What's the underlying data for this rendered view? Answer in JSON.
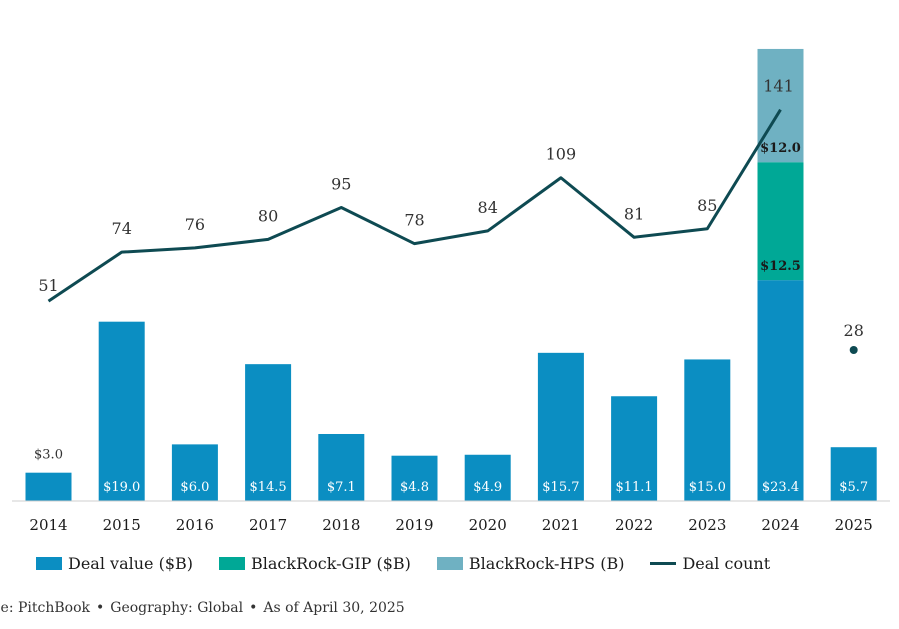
{
  "chart_data": {
    "type": "bar",
    "categories": [
      "2014",
      "2015",
      "2016",
      "2017",
      "2018",
      "2019",
      "2020",
      "2021",
      "2022",
      "2023",
      "2024",
      "2025"
    ],
    "series": [
      {
        "name": "Deal value ($B)",
        "kind": "bar",
        "values": [
          3.0,
          19.0,
          6.0,
          14.5,
          7.1,
          4.8,
          4.9,
          15.7,
          11.1,
          15.0,
          23.4,
          5.7
        ],
        "labels": [
          "$3.0",
          "$19.0",
          "$6.0",
          "$14.5",
          "$7.1",
          "$4.8",
          "$4.9",
          "$15.7",
          "$11.1",
          "$15.0",
          "$23.4",
          "$5.7"
        ]
      },
      {
        "name": "BlackRock-GIP ($B)",
        "kind": "bar",
        "values": [
          0,
          0,
          0,
          0,
          0,
          0,
          0,
          0,
          0,
          0,
          12.5,
          0
        ],
        "labels": [
          "",
          "",
          "",
          "",
          "",
          "",
          "",
          "",
          "",
          "",
          "$12.5",
          ""
        ]
      },
      {
        "name": "BlackRock-HPS (B)",
        "kind": "bar",
        "values": [
          0,
          0,
          0,
          0,
          0,
          0,
          0,
          0,
          0,
          0,
          12.0,
          0
        ],
        "labels": [
          "",
          "",
          "",
          "",
          "",
          "",
          "",
          "",
          "",
          "",
          "$12.0",
          ""
        ]
      },
      {
        "name": "Deal count",
        "kind": "line",
        "values": [
          51,
          74,
          76,
          80,
          95,
          78,
          84,
          109,
          81,
          85,
          141,
          28
        ],
        "labels": [
          "51",
          "74",
          "76",
          "80",
          "95",
          "78",
          "84",
          "109",
          "81",
          "85",
          "141",
          "28"
        ]
      }
    ],
    "title": "",
    "xlabel": "",
    "ylabel": "",
    "ylim": [
      0,
      48
    ],
    "y2lim": [
      -43,
      170
    ],
    "colors": {
      "deal_value": "#0b8ec2",
      "gip": "#00a896",
      "hps": "#6fb1c2",
      "deal_count": "#0e4a52"
    }
  },
  "legend": {
    "deal_value": "Deal value ($B)",
    "gip": "BlackRock-GIP ($B)",
    "hps": "BlackRock-HPS (B)",
    "deal_count": "Deal count"
  },
  "source": {
    "source": "rce: PitchBook",
    "geography": "Geography: Global",
    "date": "As of April 30, 2025",
    "separator": "•"
  }
}
